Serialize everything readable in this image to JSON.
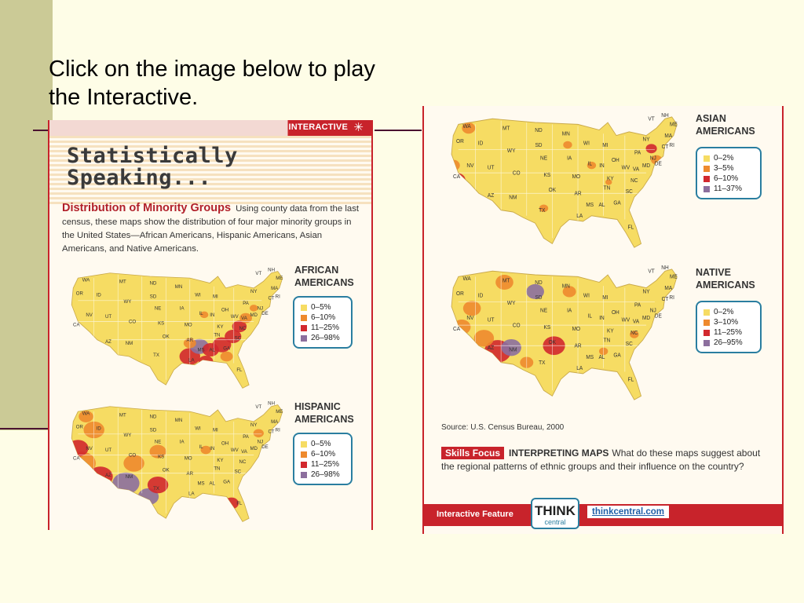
{
  "slide": {
    "title": "Click on the image below to play the Interactive."
  },
  "left_panel": {
    "banner": "INTERACTIVE",
    "title_line1": "Statistically",
    "title_line2": "Speaking...",
    "heading": "Distribution of Minority Groups",
    "intro": "Using county data from the last census, these maps show the distribution of four major minority groups in the United States—African Americans, Hispanic Americans, Asian Americans, and Native Americans."
  },
  "maps": [
    {
      "name_line1": "AFRICAN",
      "name_line2": "AMERICANS",
      "legend": [
        {
          "label": "0–5%",
          "color": "#f6dc63"
        },
        {
          "label": "6–10%",
          "color": "#ee8a2e"
        },
        {
          "label": "11–25%",
          "color": "#d2282e"
        },
        {
          "label": "26–98%",
          "color": "#8c6f9e"
        }
      ]
    },
    {
      "name_line1": "HISPANIC",
      "name_line2": "AMERICANS",
      "legend": [
        {
          "label": "0–5%",
          "color": "#f6dc63"
        },
        {
          "label": "6–10%",
          "color": "#ee8a2e"
        },
        {
          "label": "11–25%",
          "color": "#d2282e"
        },
        {
          "label": "26–98%",
          "color": "#8c6f9e"
        }
      ]
    },
    {
      "name_line1": "ASIAN",
      "name_line2": "AMERICANS",
      "legend": [
        {
          "label": "0–2%",
          "color": "#f6dc63"
        },
        {
          "label": "3–5%",
          "color": "#ee8a2e"
        },
        {
          "label": "6–10%",
          "color": "#d2282e"
        },
        {
          "label": "11–37%",
          "color": "#8c6f9e"
        }
      ]
    },
    {
      "name_line1": "NATIVE",
      "name_line2": "AMERICANS",
      "legend": [
        {
          "label": "0–2%",
          "color": "#f6dc63"
        },
        {
          "label": "3–10%",
          "color": "#ee8a2e"
        },
        {
          "label": "11–25%",
          "color": "#d2282e"
        },
        {
          "label": "26–95%",
          "color": "#8c6f9e"
        }
      ]
    }
  ],
  "state_labels": [
    "WA",
    "OR",
    "ID",
    "MT",
    "ND",
    "SD",
    "WY",
    "NV",
    "UT",
    "CO",
    "CA",
    "AZ",
    "NM",
    "NE",
    "KS",
    "OK",
    "TX",
    "MN",
    "IA",
    "MO",
    "AR",
    "LA",
    "WI",
    "IL",
    "MI",
    "IN",
    "OH",
    "KY",
    "TN",
    "MS",
    "AL",
    "GA",
    "FL",
    "SC",
    "NC",
    "VA",
    "WV",
    "PA",
    "NY",
    "VT",
    "NH",
    "ME",
    "MA",
    "RI",
    "CT",
    "NJ",
    "DE",
    "MD"
  ],
  "right_panel": {
    "source": "Source: U.S. Census Bureau, 2000",
    "skills_badge": "Skills Focus",
    "skills_heading": "INTERPRETING MAPS",
    "skills_text": "What do these maps suggest about the regional patterns of ethnic groups and their influence on the country?",
    "footer_label": "Interactive Feature",
    "think_word": "THINK",
    "think_sub": "central",
    "think_url": "thinkcentral.com"
  },
  "colors": {
    "accent_red": "#c8232b",
    "legend_border": "#2a7ea0",
    "slide_background": "#fefde7",
    "left_band": "#cbca96",
    "rule_line": "#4b1230"
  }
}
